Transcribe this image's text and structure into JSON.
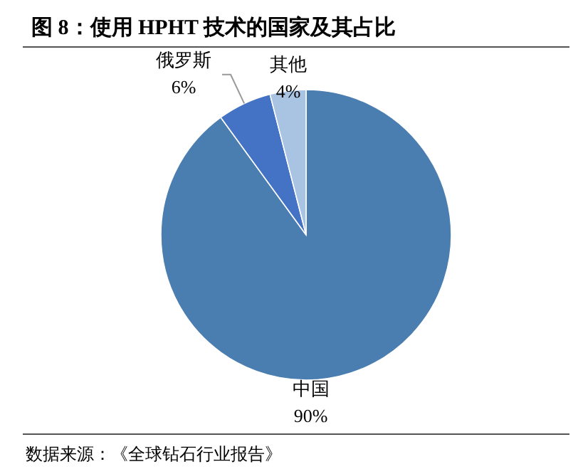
{
  "chart_data": {
    "type": "pie",
    "title": "图 8：使用 HPHT 技术的国家及其占比",
    "categories": [
      "中国",
      "俄罗斯",
      "其他"
    ],
    "values": [
      90,
      6,
      4
    ],
    "colors": [
      "#4a7eb0",
      "#4472c4",
      "#a9c3e3"
    ],
    "value_labels": [
      "90%",
      "6%",
      "4%"
    ],
    "annotations": [
      "数据来源：《全球钻石行业报告》"
    ]
  }
}
